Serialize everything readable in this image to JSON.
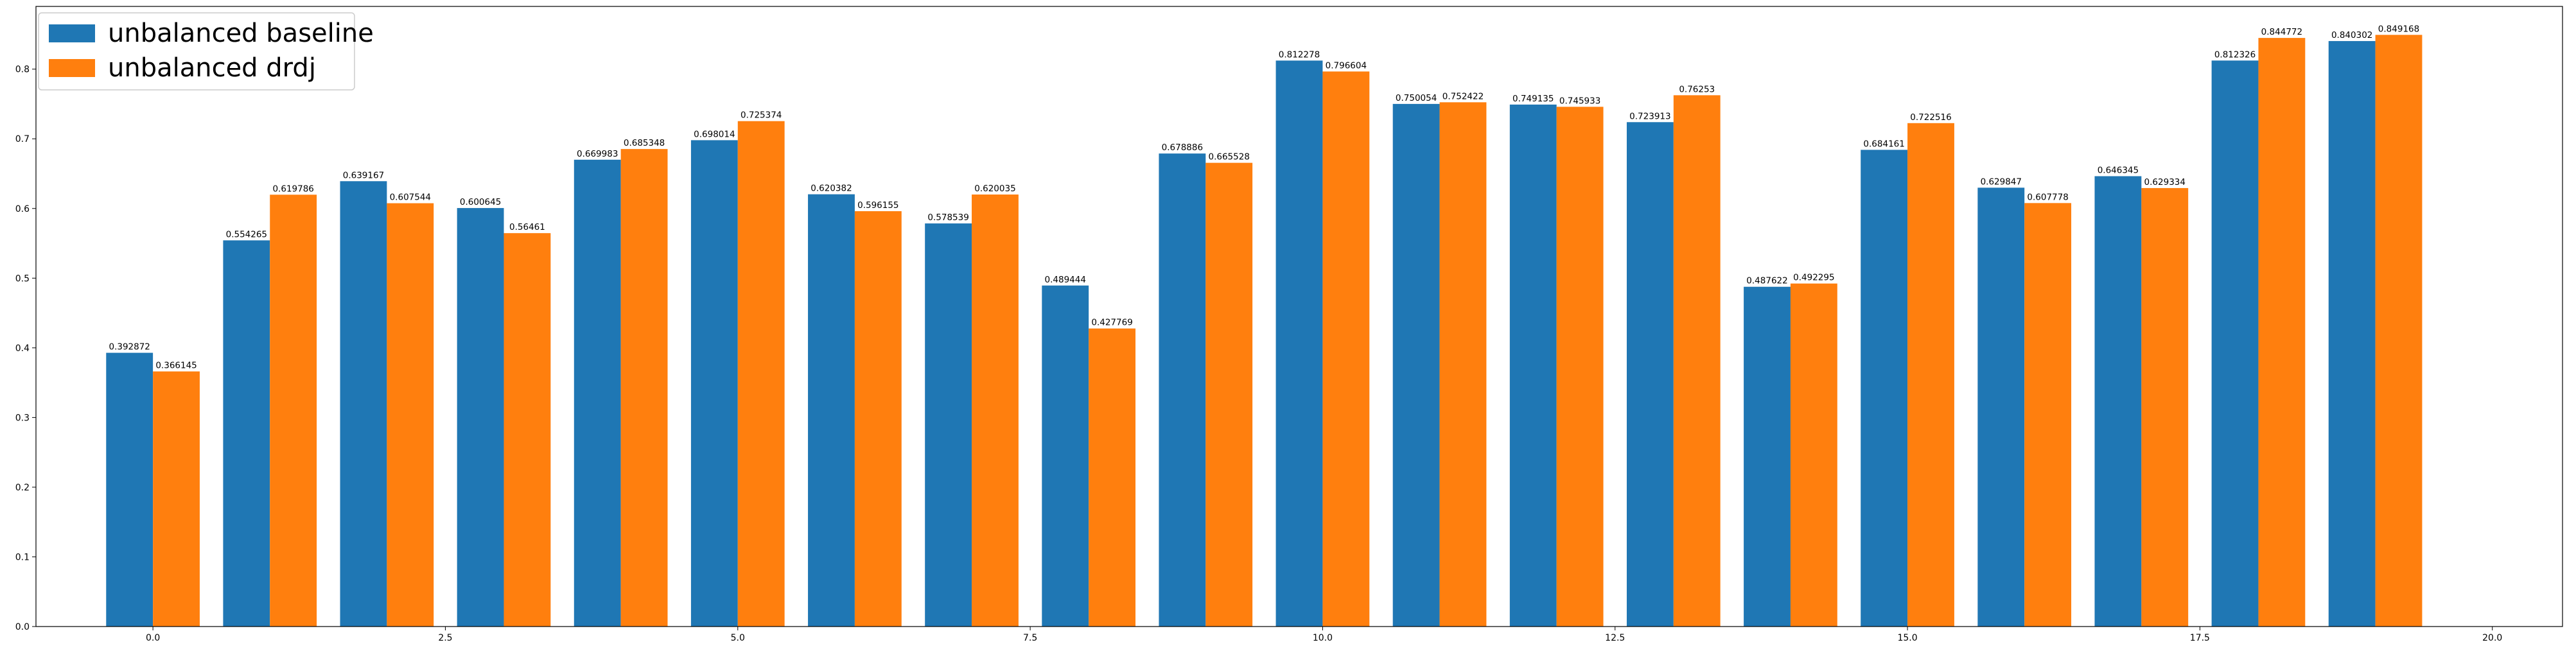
{
  "chart_data": {
    "type": "bar",
    "title": "",
    "xlabel": "",
    "ylabel": "",
    "x": [
      0,
      1,
      2,
      3,
      4,
      5,
      6,
      7,
      8,
      9,
      10,
      11,
      12,
      13,
      14,
      15,
      16,
      17,
      18,
      19
    ],
    "xlim": [
      -1,
      20.6
    ],
    "ylim": [
      0,
      0.89
    ],
    "xticks": [
      0.0,
      2.5,
      5.0,
      7.5,
      10.0,
      12.5,
      15.0,
      17.5,
      20.0
    ],
    "xtick_labels": [
      "0.0",
      "2.5",
      "5.0",
      "7.5",
      "10.0",
      "12.5",
      "15.0",
      "17.5",
      "20.0"
    ],
    "yticks": [
      0.0,
      0.1,
      0.2,
      0.3,
      0.4,
      0.5,
      0.6,
      0.7,
      0.8
    ],
    "ytick_labels": [
      "0.0",
      "0.1",
      "0.2",
      "0.3",
      "0.4",
      "0.5",
      "0.6",
      "0.7",
      "0.8"
    ],
    "grid": false,
    "legend_position": "upper-left",
    "series": [
      {
        "name": "unbalanced baseline",
        "color": "#1f77b4",
        "values": [
          0.392872,
          0.554265,
          0.639167,
          0.600645,
          0.669983,
          0.698014,
          0.620382,
          0.578539,
          0.489444,
          0.678886,
          0.812278,
          0.750054,
          0.749135,
          0.723913,
          0.487622,
          0.684161,
          0.629847,
          0.646345,
          0.812326,
          0.840302
        ],
        "labels": [
          "0.392872",
          "0.554265",
          "0.639167",
          "0.600645",
          "0.669983",
          "0.698014",
          "0.620382",
          "0.578539",
          "0.489444",
          "0.678886",
          "0.812278",
          "0.750054",
          "0.749135",
          "0.723913",
          "0.487622",
          "0.684161",
          "0.629847",
          "0.646345",
          "0.812326",
          "0.840302"
        ]
      },
      {
        "name": "unbalanced drdj",
        "color": "#ff7f0e",
        "values": [
          0.366145,
          0.619786,
          0.607544,
          0.56461,
          0.685348,
          0.725374,
          0.596155,
          0.620035,
          0.427769,
          0.665528,
          0.796604,
          0.752422,
          0.745933,
          0.76253,
          0.492295,
          0.722516,
          0.607778,
          0.629334,
          0.844772,
          0.849168
        ],
        "labels": [
          "0.366145",
          "0.619786",
          "0.607544",
          "0.56461",
          "0.685348",
          "0.725374",
          "0.596155",
          "0.620035",
          "0.427769",
          "0.665528",
          "0.796604",
          "0.752422",
          "0.745933",
          "0.76253",
          "0.492295",
          "0.722516",
          "0.607778",
          "0.629334",
          "0.844772",
          "0.849168"
        ]
      }
    ]
  }
}
